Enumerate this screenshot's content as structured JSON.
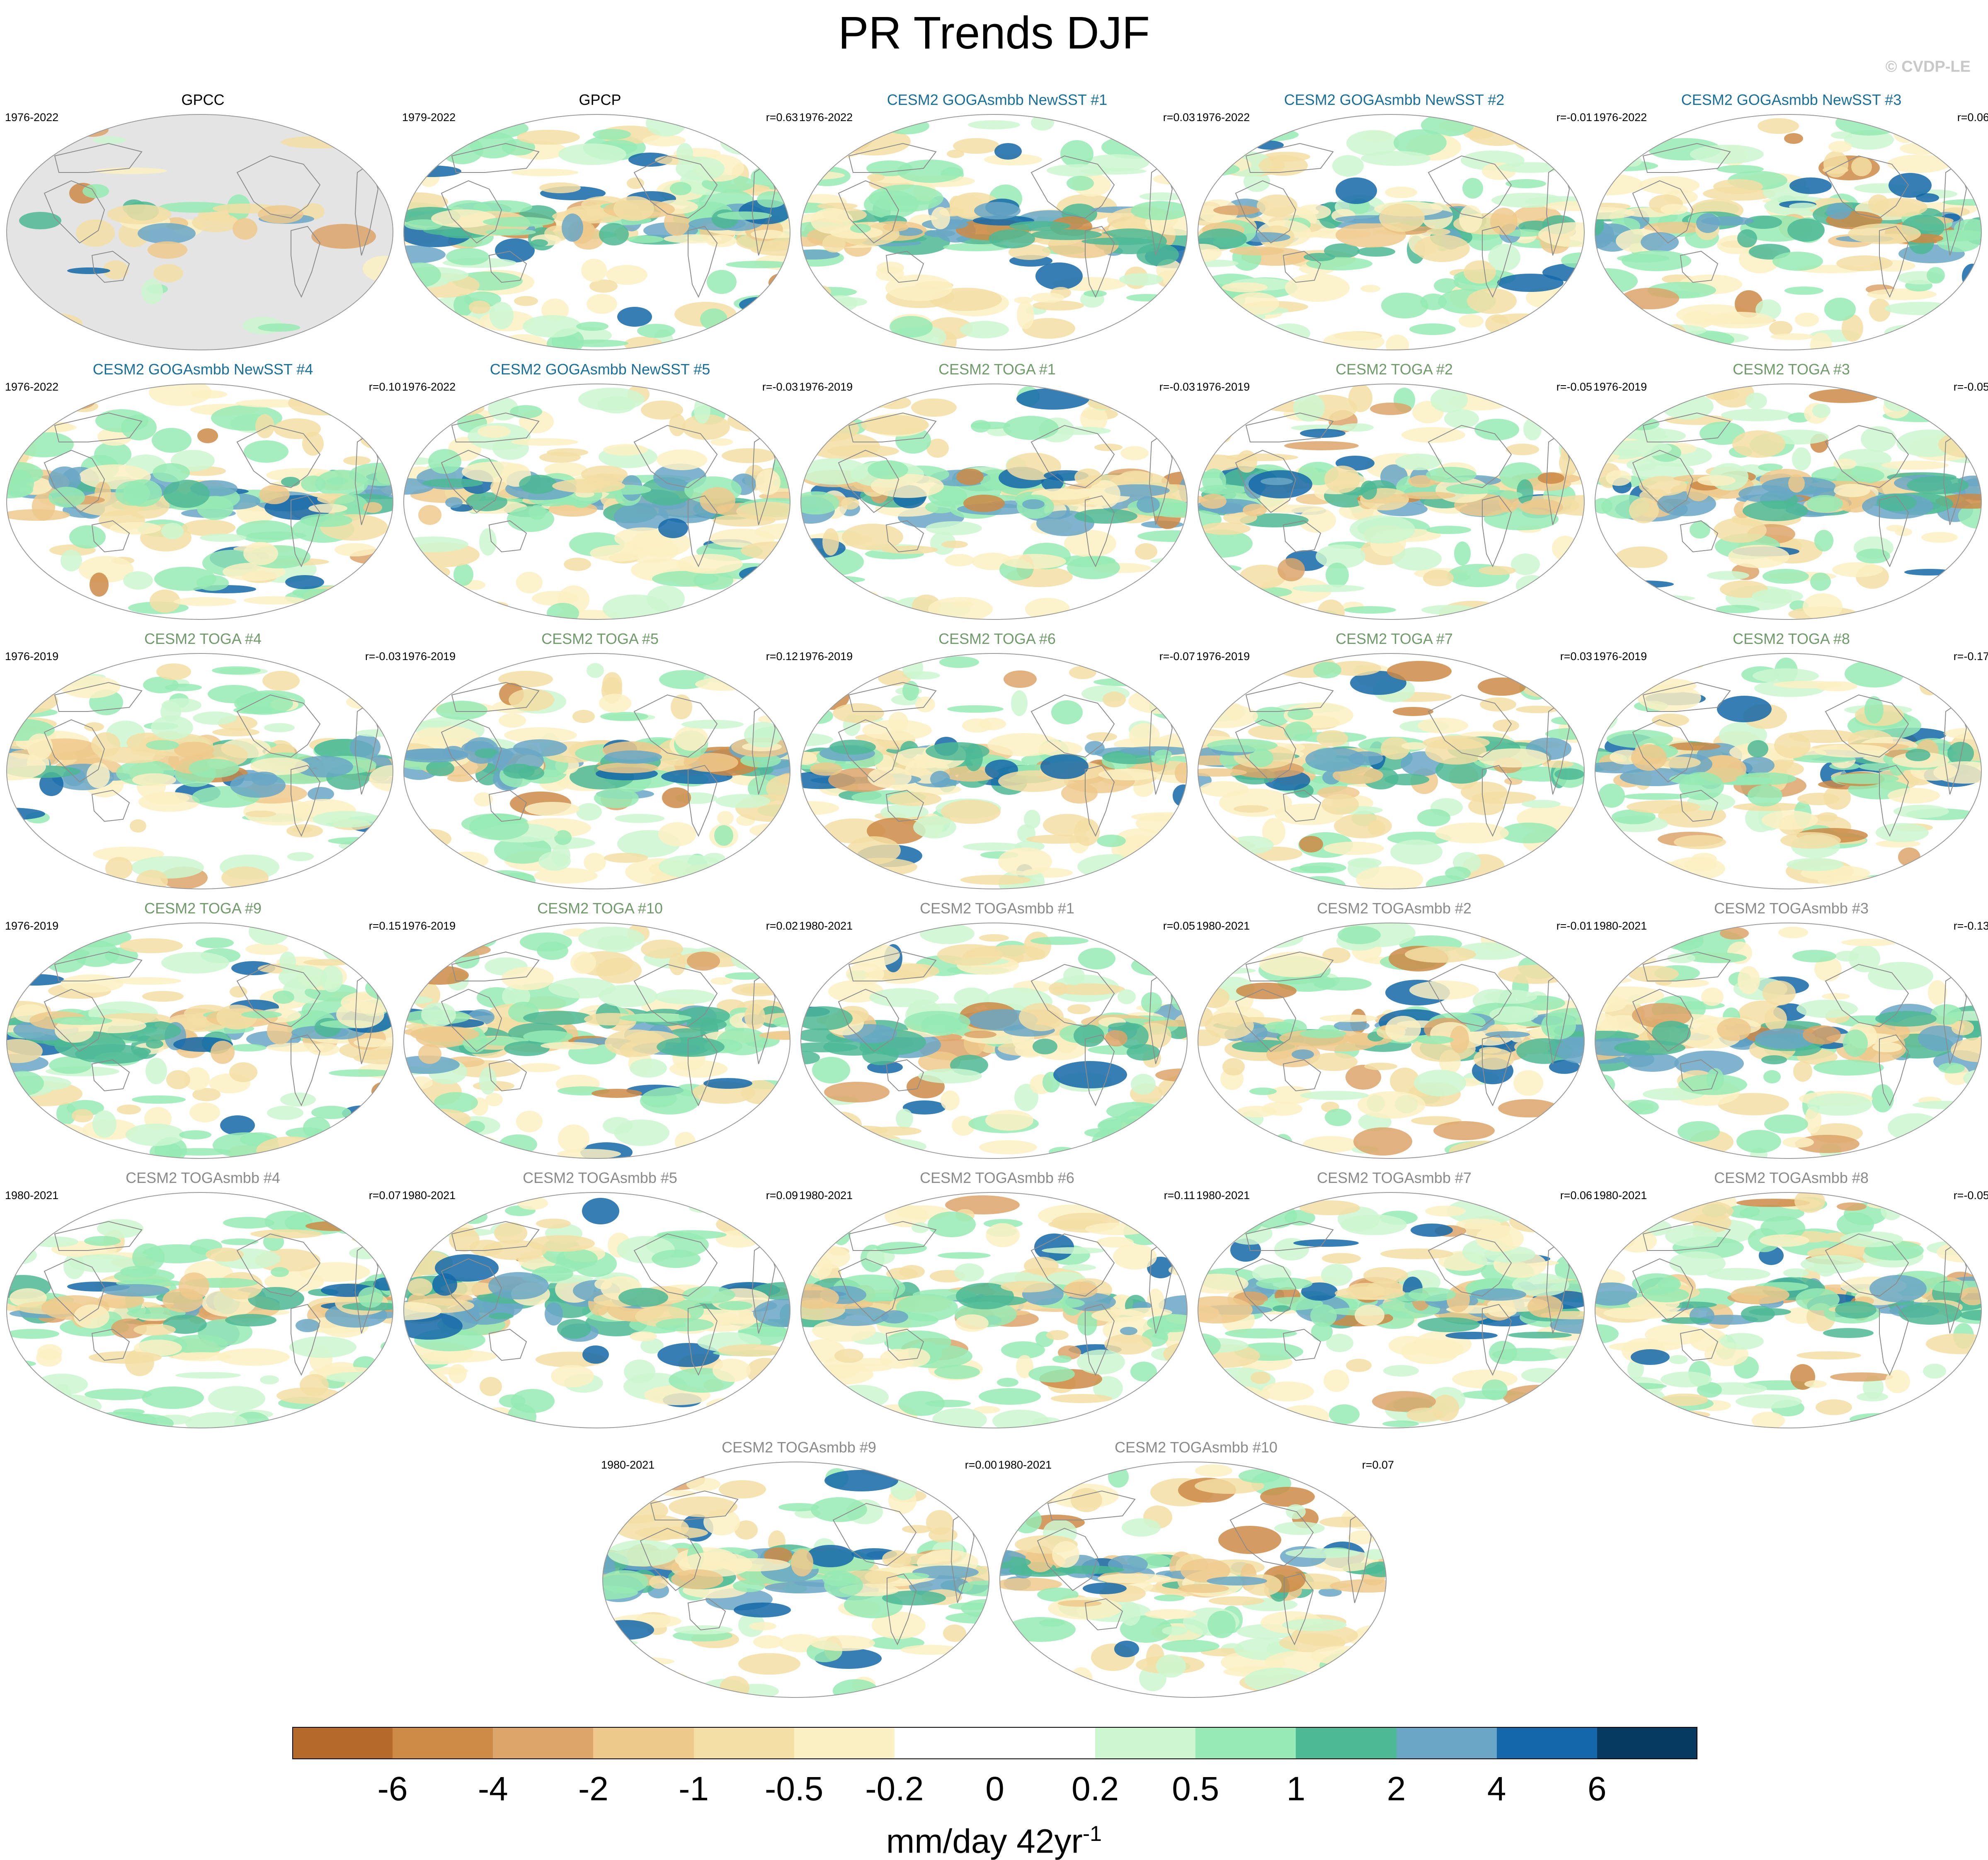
{
  "title": "PR Trends DJF",
  "credit": "© CVDP-LE",
  "colors": {
    "obs_title": "#000000",
    "goga_title": "#1a6f9a",
    "toga_title": "#6f9a6a",
    "togasmbb_title": "#8a8a8a",
    "land_gray": "#e4e4e4",
    "coast": "#8c8c8c"
  },
  "panels": [
    {
      "title": "GPCC",
      "period": "1976-2022",
      "corr": "",
      "group": "obs",
      "land_only": true
    },
    {
      "title": "GPCP",
      "period": "1979-2022",
      "corr": "r=0.63",
      "group": "obs"
    },
    {
      "title": "CESM2 GOGAsmbb NewSST #1",
      "period": "1976-2022",
      "corr": "r=0.03",
      "group": "goga"
    },
    {
      "title": "CESM2 GOGAsmbb NewSST #2",
      "period": "1976-2022",
      "corr": "r=-0.01",
      "group": "goga"
    },
    {
      "title": "CESM2 GOGAsmbb NewSST #3",
      "period": "1976-2022",
      "corr": "r=0.06",
      "group": "goga"
    },
    {
      "title": "CESM2 GOGAsmbb NewSST #4",
      "period": "1976-2022",
      "corr": "r=0.10",
      "group": "goga"
    },
    {
      "title": "CESM2 GOGAsmbb NewSST #5",
      "period": "1976-2022",
      "corr": "r=-0.03",
      "group": "goga"
    },
    {
      "title": "CESM2 TOGA #1",
      "period": "1976-2019",
      "corr": "r=-0.03",
      "group": "toga"
    },
    {
      "title": "CESM2 TOGA #2",
      "period": "1976-2019",
      "corr": "r=-0.05",
      "group": "toga"
    },
    {
      "title": "CESM2 TOGA #3",
      "period": "1976-2019",
      "corr": "r=-0.05",
      "group": "toga"
    },
    {
      "title": "CESM2 TOGA #4",
      "period": "1976-2019",
      "corr": "r=-0.03",
      "group": "toga"
    },
    {
      "title": "CESM2 TOGA #5",
      "period": "1976-2019",
      "corr": "r=0.12",
      "group": "toga"
    },
    {
      "title": "CESM2 TOGA #6",
      "period": "1976-2019",
      "corr": "r=-0.07",
      "group": "toga"
    },
    {
      "title": "CESM2 TOGA #7",
      "period": "1976-2019",
      "corr": "r=0.03",
      "group": "toga"
    },
    {
      "title": "CESM2 TOGA #8",
      "period": "1976-2019",
      "corr": "r=-0.17",
      "group": "toga"
    },
    {
      "title": "CESM2 TOGA #9",
      "period": "1976-2019",
      "corr": "r=0.15",
      "group": "toga"
    },
    {
      "title": "CESM2 TOGA #10",
      "period": "1976-2019",
      "corr": "r=0.02",
      "group": "toga"
    },
    {
      "title": "CESM2 TOGAsmbb #1",
      "period": "1980-2021",
      "corr": "r=0.05",
      "group": "togasmbb"
    },
    {
      "title": "CESM2 TOGAsmbb #2",
      "period": "1980-2021",
      "corr": "r=-0.01",
      "group": "togasmbb"
    },
    {
      "title": "CESM2 TOGAsmbb #3",
      "period": "1980-2021",
      "corr": "r=-0.13",
      "group": "togasmbb"
    },
    {
      "title": "CESM2 TOGAsmbb #4",
      "period": "1980-2021",
      "corr": "r=0.07",
      "group": "togasmbb"
    },
    {
      "title": "CESM2 TOGAsmbb #5",
      "period": "1980-2021",
      "corr": "r=0.09",
      "group": "togasmbb"
    },
    {
      "title": "CESM2 TOGAsmbb #6",
      "period": "1980-2021",
      "corr": "r=0.11",
      "group": "togasmbb"
    },
    {
      "title": "CESM2 TOGAsmbb #7",
      "period": "1980-2021",
      "corr": "r=0.06",
      "group": "togasmbb"
    },
    {
      "title": "CESM2 TOGAsmbb #8",
      "period": "1980-2021",
      "corr": "r=-0.05",
      "group": "togasmbb"
    },
    {
      "title": "CESM2 TOGAsmbb #9",
      "period": "1980-2021",
      "corr": "r=0.00",
      "group": "togasmbb"
    },
    {
      "title": "CESM2 TOGAsmbb #10",
      "period": "1980-2021",
      "corr": "r=0.07",
      "group": "togasmbb"
    }
  ],
  "colorbar": {
    "colors": [
      "#b5692a",
      "#cd8a47",
      "#dca56a",
      "#eec98c",
      "#f3dea4",
      "#fbf0c3",
      "#ffffff",
      "#ffffff",
      "#ccf7d0",
      "#97eab4",
      "#4eb995",
      "#6aa7c6",
      "#1467a8",
      "#073a5f"
    ],
    "ticks": [
      "-6",
      "-4",
      "-2",
      "-1",
      "-0.5",
      "-0.2",
      "0",
      "0.2",
      "0.5",
      "1",
      "2",
      "4",
      "6"
    ],
    "label": "mm/day 42yr",
    "label_exponent": "-1"
  }
}
